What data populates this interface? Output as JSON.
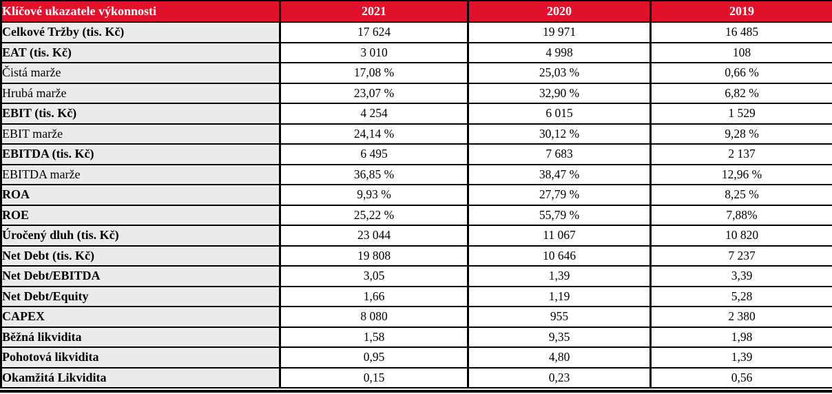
{
  "table": {
    "header": {
      "label": "Klíčové ukazatele výkonnosti",
      "years": [
        "2021",
        "2020",
        "2019"
      ]
    },
    "rows": [
      {
        "label": "Celkové Tržby (tis. Kč)",
        "bold": true,
        "values": [
          "17 624",
          "19 971",
          "16 485"
        ]
      },
      {
        "label": "EAT (tis. Kč)",
        "bold": true,
        "values": [
          "3 010",
          "4 998",
          "108"
        ]
      },
      {
        "label": "Čistá marže",
        "bold": false,
        "values": [
          "17,08 %",
          "25,03 %",
          "0,66 %"
        ]
      },
      {
        "label": "Hrubá marže",
        "bold": false,
        "values": [
          "23,07 %",
          "32,90 %",
          "6,82 %"
        ]
      },
      {
        "label": "EBIT (tis. Kč)",
        "bold": true,
        "values": [
          "4 254",
          "6 015",
          "1 529"
        ]
      },
      {
        "label": "EBIT marže",
        "bold": false,
        "values": [
          "24,14 %",
          "30,12 %",
          "9,28 %"
        ]
      },
      {
        "label": "EBITDA (tis. Kč)",
        "bold": true,
        "values": [
          "6 495",
          "7 683",
          "2 137"
        ]
      },
      {
        "label": "EBITDA marže",
        "bold": false,
        "values": [
          "36,85 %",
          "38,47 %",
          "12,96 %"
        ]
      },
      {
        "label": "ROA",
        "bold": true,
        "values": [
          "9,93 %",
          "27,79 %",
          "8,25 %"
        ]
      },
      {
        "label": "ROE",
        "bold": true,
        "values": [
          "25,22 %",
          "55,79 %",
          "7,88%"
        ]
      },
      {
        "label": "Úročený dluh (tis. Kč)",
        "bold": true,
        "values": [
          "23 044",
          "11 067",
          "10 820"
        ]
      },
      {
        "label": "Net Debt (tis. Kč)",
        "bold": true,
        "values": [
          "19 808",
          "10 646",
          "7 237"
        ]
      },
      {
        "label": "Net Debt/EBITDA",
        "bold": true,
        "values": [
          "3,05",
          "1,39",
          "3,39"
        ]
      },
      {
        "label": "Net Debt/Equity",
        "bold": true,
        "values": [
          "1,66",
          "1,19",
          "5,28"
        ]
      },
      {
        "label": "CAPEX",
        "bold": true,
        "values": [
          "8 080",
          "955",
          "2 380"
        ]
      },
      {
        "label": "Běžná likvidita",
        "bold": true,
        "values": [
          "1,58",
          "9,35",
          "1,98"
        ]
      },
      {
        "label": "Pohotová likvidita",
        "bold": true,
        "values": [
          "0,95",
          "4,80",
          "1,39"
        ]
      },
      {
        "label": "Okamžitá Likvidita",
        "bold": true,
        "values": [
          "0,15",
          "0,23",
          "0,56"
        ]
      }
    ],
    "colors": {
      "header_bg": "#e1112c",
      "header_text": "#ffffff",
      "label_bg": "#ebebeb",
      "border": "#000000",
      "value_bg": "#ffffff"
    }
  }
}
